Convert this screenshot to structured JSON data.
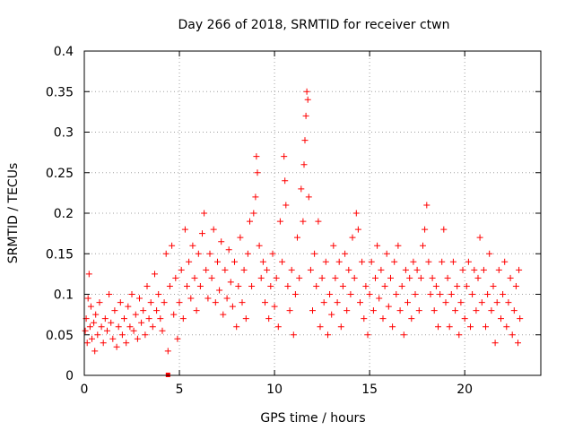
{
  "chart_data": {
    "type": "scatter",
    "title": "Day 266 of 2018, SRMTID for receiver ctwn",
    "xlabel": "GPS time / hours",
    "ylabel": "SRMTID / TECUs",
    "xlim": [
      0,
      24
    ],
    "ylim": [
      0,
      0.4
    ],
    "xticks": [
      0,
      5,
      10,
      15,
      20
    ],
    "xtick_labels": [
      "0",
      "5",
      "10",
      "15",
      "20"
    ],
    "yticks": [
      0,
      0.05,
      0.1,
      0.15,
      0.2,
      0.25,
      0.3,
      0.35,
      0.4
    ],
    "ytick_labels": [
      "0",
      "0.05",
      "0.1",
      "0.15",
      "0.2",
      "0.25",
      "0.3",
      "0.35",
      "0.4"
    ],
    "grid": true,
    "marker": "plus",
    "color": "#ff0000",
    "series": [
      {
        "name": "SRMTID",
        "points": [
          [
            0.05,
            0.055
          ],
          [
            0.1,
            0.07
          ],
          [
            0.15,
            0.04
          ],
          [
            0.2,
            0.095
          ],
          [
            0.25,
            0.125
          ],
          [
            0.3,
            0.06
          ],
          [
            0.35,
            0.085
          ],
          [
            0.4,
            0.045
          ],
          [
            0.5,
            0.065
          ],
          [
            0.55,
            0.03
          ],
          [
            0.6,
            0.075
          ],
          [
            0.7,
            0.05
          ],
          [
            0.8,
            0.09
          ],
          [
            0.9,
            0.06
          ],
          [
            1.0,
            0.04
          ],
          [
            1.1,
            0.07
          ],
          [
            1.2,
            0.055
          ],
          [
            1.3,
            0.1
          ],
          [
            1.4,
            0.065
          ],
          [
            1.5,
            0.045
          ],
          [
            1.6,
            0.08
          ],
          [
            1.7,
            0.035
          ],
          [
            1.8,
            0.06
          ],
          [
            1.9,
            0.09
          ],
          [
            2.0,
            0.05
          ],
          [
            2.1,
            0.07
          ],
          [
            2.2,
            0.04
          ],
          [
            2.3,
            0.085
          ],
          [
            2.4,
            0.06
          ],
          [
            2.5,
            0.1
          ],
          [
            2.6,
            0.055
          ],
          [
            2.7,
            0.075
          ],
          [
            2.8,
            0.045
          ],
          [
            2.9,
            0.095
          ],
          [
            3.0,
            0.065
          ],
          [
            3.1,
            0.08
          ],
          [
            3.2,
            0.05
          ],
          [
            3.3,
            0.11
          ],
          [
            3.4,
            0.07
          ],
          [
            3.5,
            0.09
          ],
          [
            3.6,
            0.06
          ],
          [
            3.7,
            0.125
          ],
          [
            3.8,
            0.08
          ],
          [
            3.9,
            0.1
          ],
          [
            4.0,
            0.07
          ],
          [
            4.1,
            0.055
          ],
          [
            4.2,
            0.09
          ],
          [
            4.3,
            0.15
          ],
          [
            4.4,
            0.03
          ],
          [
            4.5,
            0.11
          ],
          [
            4.6,
            0.16
          ],
          [
            4.7,
            0.075
          ],
          [
            4.8,
            0.12
          ],
          [
            4.9,
            0.045
          ],
          [
            5.0,
            0.09
          ],
          [
            5.1,
            0.13
          ],
          [
            5.2,
            0.07
          ],
          [
            5.3,
            0.18
          ],
          [
            5.4,
            0.11
          ],
          [
            5.5,
            0.14
          ],
          [
            5.6,
            0.095
          ],
          [
            5.7,
            0.16
          ],
          [
            5.8,
            0.12
          ],
          [
            5.9,
            0.08
          ],
          [
            6.0,
            0.15
          ],
          [
            6.1,
            0.11
          ],
          [
            6.2,
            0.175
          ],
          [
            6.3,
            0.2
          ],
          [
            6.4,
            0.13
          ],
          [
            6.5,
            0.095
          ],
          [
            6.6,
            0.15
          ],
          [
            6.7,
            0.12
          ],
          [
            6.8,
            0.18
          ],
          [
            6.9,
            0.09
          ],
          [
            7.0,
            0.14
          ],
          [
            7.1,
            0.105
          ],
          [
            7.2,
            0.165
          ],
          [
            7.3,
            0.075
          ],
          [
            7.4,
            0.13
          ],
          [
            7.5,
            0.095
          ],
          [
            7.6,
            0.155
          ],
          [
            7.7,
            0.115
          ],
          [
            7.8,
            0.085
          ],
          [
            7.9,
            0.14
          ],
          [
            8.0,
            0.06
          ],
          [
            8.1,
            0.11
          ],
          [
            8.2,
            0.17
          ],
          [
            8.3,
            0.09
          ],
          [
            8.4,
            0.13
          ],
          [
            8.5,
            0.07
          ],
          [
            8.6,
            0.15
          ],
          [
            8.7,
            0.19
          ],
          [
            8.8,
            0.11
          ],
          [
            8.9,
            0.2
          ],
          [
            9.0,
            0.22
          ],
          [
            9.05,
            0.27
          ],
          [
            9.1,
            0.25
          ],
          [
            9.2,
            0.16
          ],
          [
            9.3,
            0.12
          ],
          [
            9.4,
            0.14
          ],
          [
            9.5,
            0.09
          ],
          [
            9.6,
            0.13
          ],
          [
            9.7,
            0.07
          ],
          [
            9.8,
            0.11
          ],
          [
            9.9,
            0.15
          ],
          [
            10.0,
            0.085
          ],
          [
            10.1,
            0.12
          ],
          [
            10.2,
            0.06
          ],
          [
            10.3,
            0.19
          ],
          [
            10.4,
            0.14
          ],
          [
            10.5,
            0.27
          ],
          [
            10.55,
            0.24
          ],
          [
            10.6,
            0.21
          ],
          [
            10.7,
            0.11
          ],
          [
            10.8,
            0.08
          ],
          [
            10.9,
            0.13
          ],
          [
            11.0,
            0.05
          ],
          [
            11.1,
            0.1
          ],
          [
            11.2,
            0.17
          ],
          [
            11.3,
            0.12
          ],
          [
            11.4,
            0.23
          ],
          [
            11.5,
            0.19
          ],
          [
            11.55,
            0.26
          ],
          [
            11.6,
            0.29
          ],
          [
            11.65,
            0.32
          ],
          [
            11.7,
            0.35
          ],
          [
            11.75,
            0.34
          ],
          [
            11.8,
            0.22
          ],
          [
            11.9,
            0.13
          ],
          [
            12.0,
            0.08
          ],
          [
            12.1,
            0.15
          ],
          [
            12.2,
            0.11
          ],
          [
            12.3,
            0.19
          ],
          [
            12.4,
            0.06
          ],
          [
            12.5,
            0.12
          ],
          [
            12.6,
            0.09
          ],
          [
            12.7,
            0.14
          ],
          [
            12.8,
            0.05
          ],
          [
            12.9,
            0.1
          ],
          [
            13.0,
            0.075
          ],
          [
            13.1,
            0.16
          ],
          [
            13.2,
            0.12
          ],
          [
            13.3,
            0.09
          ],
          [
            13.4,
            0.14
          ],
          [
            13.5,
            0.06
          ],
          [
            13.6,
            0.11
          ],
          [
            13.7,
            0.15
          ],
          [
            13.8,
            0.08
          ],
          [
            13.9,
            0.13
          ],
          [
            14.0,
            0.1
          ],
          [
            14.1,
            0.17
          ],
          [
            14.2,
            0.12
          ],
          [
            14.3,
            0.2
          ],
          [
            14.4,
            0.18
          ],
          [
            14.5,
            0.09
          ],
          [
            14.6,
            0.14
          ],
          [
            14.7,
            0.07
          ],
          [
            14.8,
            0.11
          ],
          [
            14.9,
            0.05
          ],
          [
            15.0,
            0.1
          ],
          [
            15.1,
            0.14
          ],
          [
            15.2,
            0.08
          ],
          [
            15.3,
            0.12
          ],
          [
            15.4,
            0.16
          ],
          [
            15.5,
            0.095
          ],
          [
            15.6,
            0.13
          ],
          [
            15.7,
            0.07
          ],
          [
            15.8,
            0.11
          ],
          [
            15.9,
            0.15
          ],
          [
            16.0,
            0.085
          ],
          [
            16.1,
            0.12
          ],
          [
            16.2,
            0.06
          ],
          [
            16.3,
            0.14
          ],
          [
            16.4,
            0.1
          ],
          [
            16.5,
            0.16
          ],
          [
            16.6,
            0.08
          ],
          [
            16.7,
            0.11
          ],
          [
            16.8,
            0.05
          ],
          [
            16.9,
            0.13
          ],
          [
            17.0,
            0.09
          ],
          [
            17.1,
            0.12
          ],
          [
            17.2,
            0.07
          ],
          [
            17.3,
            0.14
          ],
          [
            17.4,
            0.1
          ],
          [
            17.5,
            0.13
          ],
          [
            17.6,
            0.08
          ],
          [
            17.7,
            0.12
          ],
          [
            17.8,
            0.16
          ],
          [
            17.9,
            0.18
          ],
          [
            18.0,
            0.21
          ],
          [
            18.1,
            0.14
          ],
          [
            18.2,
            0.1
          ],
          [
            18.3,
            0.12
          ],
          [
            18.4,
            0.08
          ],
          [
            18.5,
            0.11
          ],
          [
            18.6,
            0.06
          ],
          [
            18.7,
            0.1
          ],
          [
            18.8,
            0.14
          ],
          [
            18.9,
            0.18
          ],
          [
            19.0,
            0.09
          ],
          [
            19.1,
            0.12
          ],
          [
            19.2,
            0.06
          ],
          [
            19.3,
            0.1
          ],
          [
            19.4,
            0.14
          ],
          [
            19.5,
            0.08
          ],
          [
            19.6,
            0.11
          ],
          [
            19.7,
            0.05
          ],
          [
            19.8,
            0.09
          ],
          [
            19.9,
            0.13
          ],
          [
            20.0,
            0.07
          ],
          [
            20.1,
            0.11
          ],
          [
            20.2,
            0.14
          ],
          [
            20.3,
            0.06
          ],
          [
            20.4,
            0.1
          ],
          [
            20.5,
            0.13
          ],
          [
            20.6,
            0.08
          ],
          [
            20.7,
            0.12
          ],
          [
            20.8,
            0.17
          ],
          [
            20.9,
            0.09
          ],
          [
            21.0,
            0.13
          ],
          [
            21.1,
            0.06
          ],
          [
            21.2,
            0.1
          ],
          [
            21.3,
            0.15
          ],
          [
            21.4,
            0.08
          ],
          [
            21.5,
            0.11
          ],
          [
            21.6,
            0.04
          ],
          [
            21.7,
            0.09
          ],
          [
            21.8,
            0.13
          ],
          [
            21.9,
            0.07
          ],
          [
            22.0,
            0.1
          ],
          [
            22.1,
            0.14
          ],
          [
            22.2,
            0.06
          ],
          [
            22.3,
            0.09
          ],
          [
            22.4,
            0.12
          ],
          [
            22.5,
            0.05
          ],
          [
            22.6,
            0.08
          ],
          [
            22.7,
            0.11
          ],
          [
            22.8,
            0.04
          ],
          [
            22.85,
            0.13
          ],
          [
            22.9,
            0.07
          ]
        ]
      }
    ],
    "isolated_marker": {
      "x": 4.4,
      "y": 0.0
    }
  }
}
